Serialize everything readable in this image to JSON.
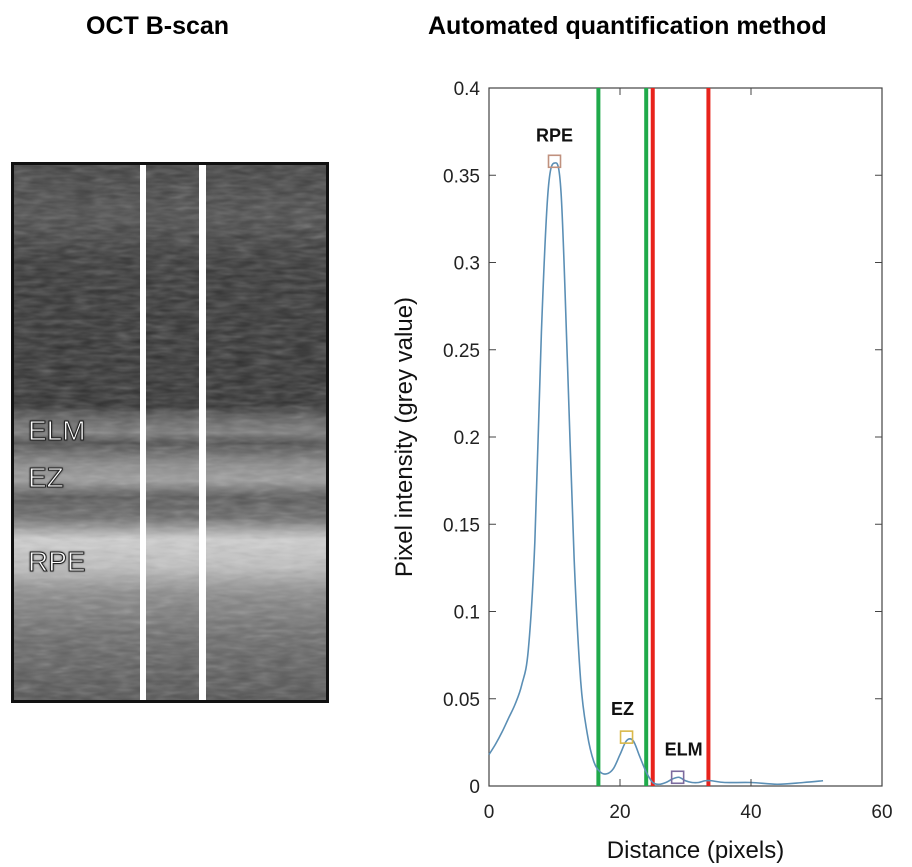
{
  "left_panel": {
    "title": "OCT B-scan",
    "layer_labels": {
      "elm": "ELM",
      "ez": "EZ",
      "rpe": "RPE"
    }
  },
  "right_panel": {
    "title": "Automated quantification method"
  },
  "chart_data": {
    "type": "line",
    "title": "Automated quantification method",
    "xlabel": "Distance (pixels)",
    "ylabel": "Pixel intensity (grey value)",
    "xlim": [
      0,
      60
    ],
    "ylim": [
      0,
      0.4
    ],
    "xticks": [
      "0",
      "20",
      "40",
      "60"
    ],
    "yticks": [
      "0",
      "0.05",
      "0.1",
      "0.15",
      "0.2",
      "0.25",
      "0.3",
      "0.35",
      "0.4"
    ],
    "grid": false,
    "series": [
      {
        "color": "#5b8fb5",
        "x": [
          0,
          1,
          2,
          3,
          4,
          5,
          6,
          7,
          8,
          9,
          10,
          11,
          12,
          13,
          14,
          15,
          16,
          17,
          18,
          19,
          20,
          21,
          22,
          23,
          24,
          25,
          26,
          27,
          28,
          29,
          30,
          31,
          32,
          33,
          34,
          36,
          40,
          44,
          48,
          51
        ],
        "y": [
          0.018,
          0.024,
          0.031,
          0.039,
          0.047,
          0.058,
          0.078,
          0.14,
          0.26,
          0.34,
          0.357,
          0.34,
          0.24,
          0.13,
          0.06,
          0.03,
          0.014,
          0.008,
          0.007,
          0.01,
          0.018,
          0.026,
          0.026,
          0.017,
          0.008,
          0.002,
          0.001,
          0.002,
          0.004,
          0.005,
          0.003,
          0.002,
          0.002,
          0.003,
          0.003,
          0.002,
          0.002,
          0.001,
          0.002,
          0.003
        ]
      }
    ],
    "peaks": [
      {
        "label": "RPE",
        "x": 10,
        "y": 0.358,
        "marker_color": "#c0917e"
      },
      {
        "label": "EZ",
        "x": 21,
        "y": 0.028,
        "marker_color": "#d9b84a"
      },
      {
        "label": "ELM",
        "x": 28.8,
        "y": 0.005,
        "marker_color": "#7c6b9e"
      }
    ],
    "vertical_lines": [
      {
        "x": 16.7,
        "color": "#1faa4a"
      },
      {
        "x": 24,
        "color": "#1faa4a"
      },
      {
        "x": 25,
        "color": "#e8231c"
      },
      {
        "x": 33.5,
        "color": "#e8231c"
      }
    ]
  }
}
